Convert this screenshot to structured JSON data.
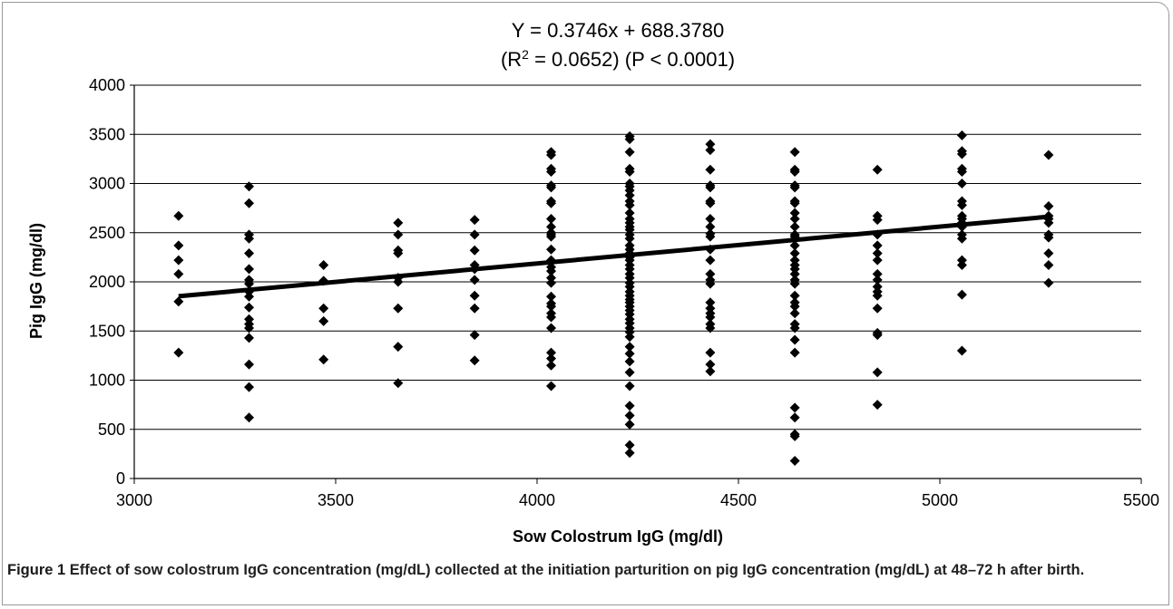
{
  "chart_data": {
    "type": "scatter",
    "title_line1": "Y = 0.3746x + 688.3780",
    "title_line2_prefix": "(R",
    "title_line2_sup": "2",
    "title_line2_suffix": " = 0.0652) (P < 0.0001)",
    "xlabel": "Sow Colostrum IgG (mg/dl)",
    "ylabel": "Pig IgG (mg/dl)",
    "xlim": [
      3000,
      5500
    ],
    "ylim": [
      0,
      4000
    ],
    "xticks": [
      "3000",
      "3500",
      "4000",
      "4500",
      "5000",
      "5500"
    ],
    "yticks": [
      "0",
      "500",
      "1000",
      "1500",
      "2000",
      "2500",
      "3000",
      "3500",
      "4000"
    ],
    "grid": "horizontal",
    "regression": {
      "slope": 0.3746,
      "intercept": 688.378,
      "x_range": [
        3110,
        5270
      ]
    },
    "groups": [
      {
        "x": 3110,
        "y": [
          2670,
          2370,
          2220,
          2080,
          1800,
          1280
        ]
      },
      {
        "x": 3285,
        "y": [
          2970,
          2800,
          2480,
          2440,
          2290,
          2130,
          2020,
          1980,
          1900,
          1850,
          1740,
          1620,
          1570,
          1530,
          1430,
          1160,
          930,
          620
        ]
      },
      {
        "x": 3470,
        "y": [
          2170,
          2010,
          1730,
          1600,
          1210
        ]
      },
      {
        "x": 3655,
        "y": [
          2600,
          2480,
          2320,
          2290,
          2040,
          2000,
          1730,
          1340,
          970
        ]
      },
      {
        "x": 3845,
        "y": [
          2630,
          2480,
          2320,
          2170,
          2130,
          2020,
          1860,
          1730,
          1460,
          1200
        ]
      },
      {
        "x": 4035,
        "y": [
          3320,
          3290,
          3150,
          3120,
          2980,
          2960,
          2820,
          2800,
          2640,
          2560,
          2500,
          2480,
          2460,
          2330,
          2220,
          2200,
          2150,
          2110,
          2040,
          1990,
          1850,
          1780,
          1750,
          1680,
          1640,
          1530,
          1280,
          1220,
          1150,
          940
        ]
      },
      {
        "x": 4230,
        "y": [
          3480,
          3450,
          3320,
          3150,
          3120,
          3000,
          2970,
          2930,
          2880,
          2820,
          2780,
          2700,
          2640,
          2600,
          2560,
          2530,
          2480,
          2440,
          2370,
          2330,
          2290,
          2250,
          2220,
          2170,
          2130,
          2080,
          2040,
          1990,
          1950,
          1900,
          1860,
          1820,
          1790,
          1750,
          1710,
          1670,
          1620,
          1580,
          1530,
          1490,
          1440,
          1340,
          1270,
          1190,
          1080,
          940,
          740,
          640,
          550,
          340,
          260
        ]
      },
      {
        "x": 4430,
        "y": [
          3400,
          3340,
          3140,
          2980,
          2960,
          2820,
          2800,
          2640,
          2560,
          2490,
          2460,
          2330,
          2220,
          2080,
          2020,
          1980,
          1790,
          1730,
          1680,
          1640,
          1570,
          1530,
          1280,
          1160,
          1090
        ]
      },
      {
        "x": 4640,
        "y": [
          3320,
          3140,
          3120,
          2980,
          2960,
          2820,
          2800,
          2700,
          2640,
          2560,
          2480,
          2460,
          2370,
          2290,
          2220,
          2170,
          2130,
          2080,
          2020,
          1980,
          1860,
          1790,
          1750,
          1680,
          1570,
          1530,
          1410,
          1280,
          720,
          620,
          450,
          430,
          180
        ]
      },
      {
        "x": 4845,
        "y": [
          3140,
          2670,
          2630,
          2480,
          2370,
          2290,
          2220,
          2080,
          2020,
          1950,
          1900,
          1860,
          1730,
          1480,
          1460,
          1080,
          750
        ]
      },
      {
        "x": 5055,
        "y": [
          3490,
          3330,
          3300,
          3150,
          3120,
          3000,
          2820,
          2780,
          2670,
          2640,
          2600,
          2560,
          2480,
          2440,
          2220,
          2170,
          1870,
          1300
        ]
      },
      {
        "x": 5270,
        "y": [
          3290,
          2770,
          2670,
          2640,
          2600,
          2480,
          2450,
          2290,
          2170,
          1990
        ]
      }
    ]
  },
  "caption": {
    "label": "Figure 1",
    "text": "Effect of sow colostrum IgG concentration (mg/dL) collected at the initiation parturition on pig IgG concentration (mg/dL) at 48–72 h after birth."
  }
}
